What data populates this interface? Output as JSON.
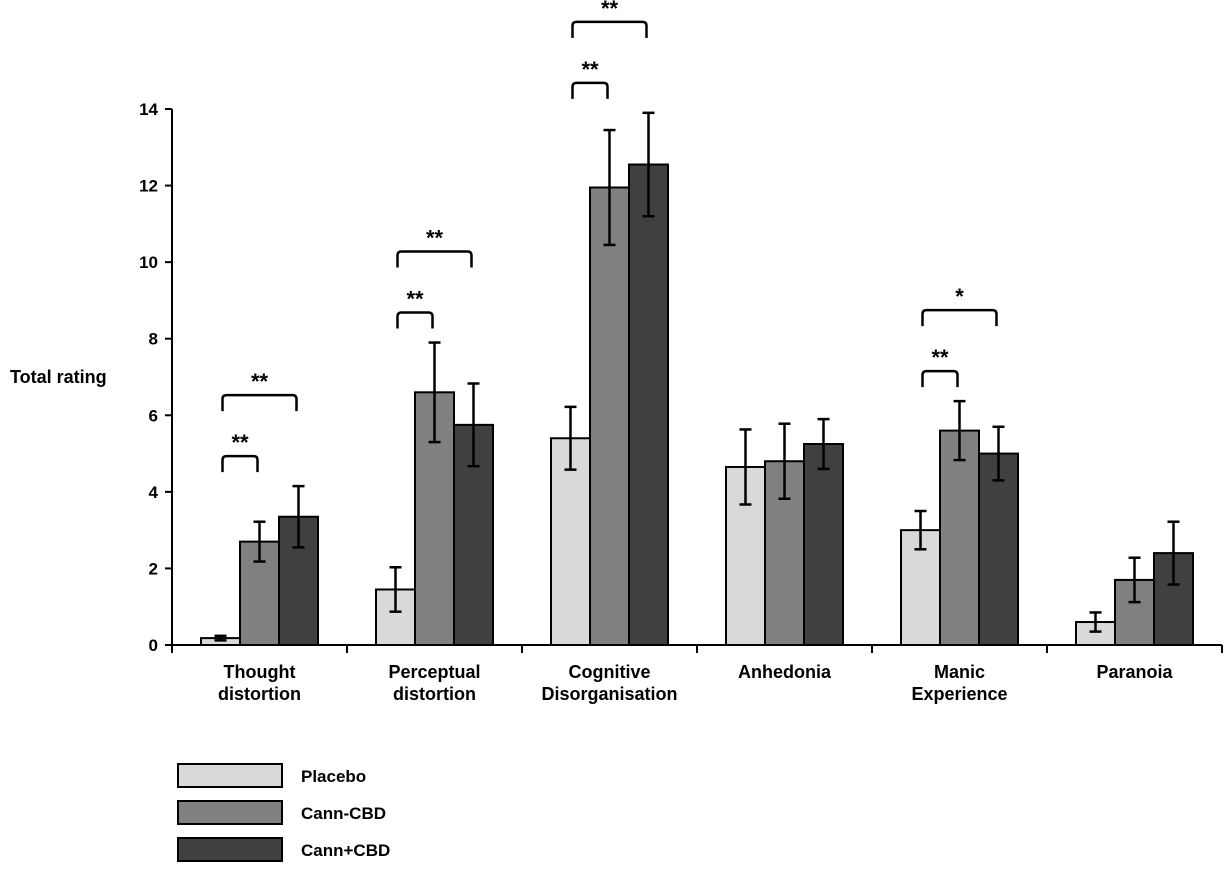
{
  "chart_data": {
    "type": "bar",
    "ylabel": "Total rating",
    "xlabel": "",
    "title": "",
    "ylim": [
      0,
      14
    ],
    "yticks": [
      0,
      2,
      4,
      6,
      8,
      10,
      12,
      14
    ],
    "categories": [
      [
        "Thought",
        "distortion"
      ],
      [
        "Perceptual",
        "distortion"
      ],
      [
        "Cognitive",
        "Disorganisation"
      ],
      [
        "Anhedonia"
      ],
      [
        "Manic",
        "Experience"
      ],
      [
        "Paranoia"
      ]
    ],
    "series": [
      {
        "name": "Placebo",
        "color": "#d9d9d9",
        "values": [
          0.18,
          1.45,
          5.4,
          4.65,
          3.0,
          0.6
        ],
        "errors": [
          0.06,
          0.58,
          0.82,
          0.98,
          0.5,
          0.25
        ]
      },
      {
        "name": "Cann-CBD",
        "color": "#808080",
        "values": [
          2.7,
          6.6,
          11.95,
          4.8,
          5.6,
          1.7
        ],
        "errors": [
          0.52,
          1.3,
          1.5,
          0.98,
          0.77,
          0.58
        ]
      },
      {
        "name": "Cann+CBD",
        "color": "#404040",
        "values": [
          3.35,
          5.75,
          12.55,
          5.25,
          5.0,
          2.4
        ],
        "errors": [
          0.8,
          1.08,
          1.35,
          0.65,
          0.7,
          0.82
        ]
      }
    ],
    "significance": [
      {
        "category": 0,
        "from": 0,
        "to": 1,
        "label": "**"
      },
      {
        "category": 0,
        "from": 0,
        "to": 2,
        "label": "**"
      },
      {
        "category": 1,
        "from": 0,
        "to": 1,
        "label": "**"
      },
      {
        "category": 1,
        "from": 0,
        "to": 2,
        "label": "**"
      },
      {
        "category": 2,
        "from": 0,
        "to": 1,
        "label": "**"
      },
      {
        "category": 2,
        "from": 0,
        "to": 2,
        "label": "**"
      },
      {
        "category": 4,
        "from": 0,
        "to": 1,
        "label": "**"
      },
      {
        "category": 4,
        "from": 0,
        "to": 2,
        "label": "*"
      }
    ],
    "legend_position": "bottom-left",
    "grid": false
  }
}
